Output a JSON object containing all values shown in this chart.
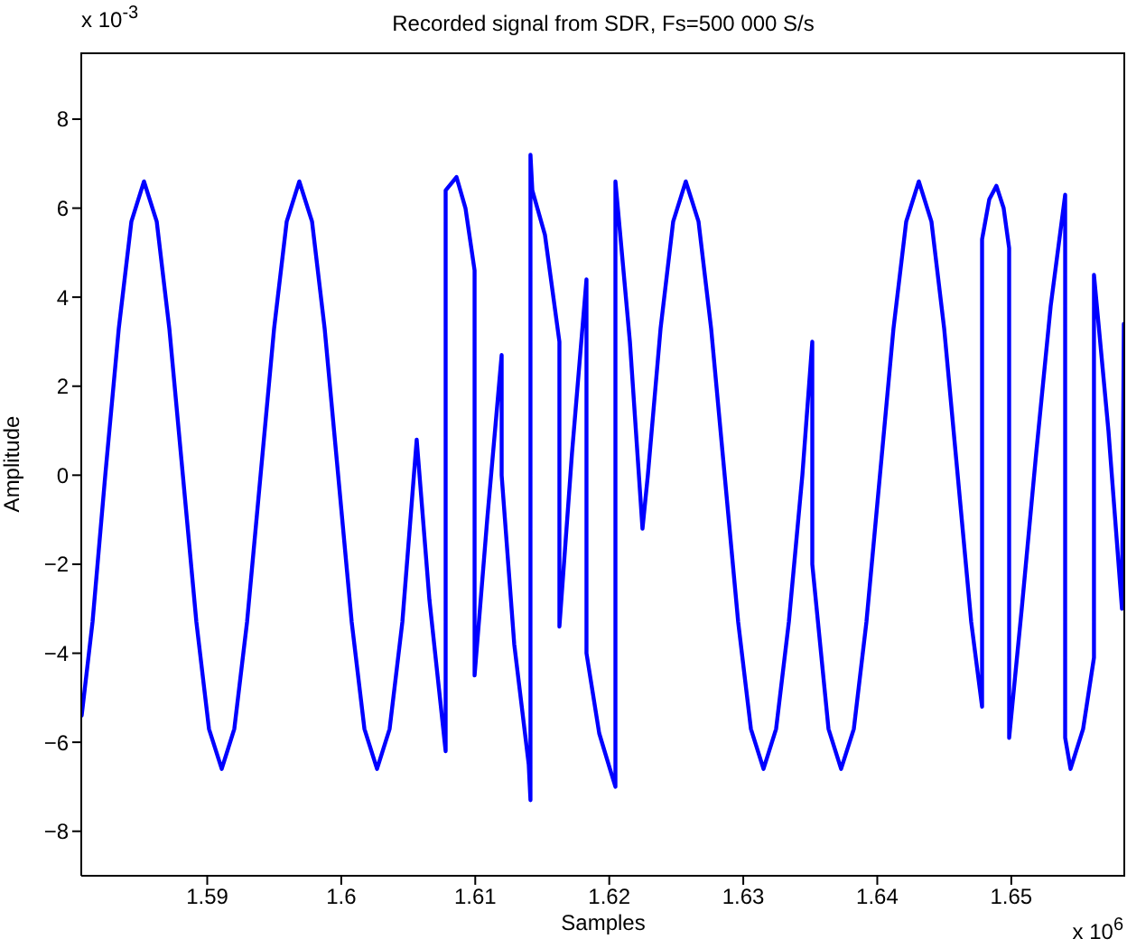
{
  "chart_data": {
    "type": "line",
    "title": "Recorded signal from SDR, Fs=500 000 S/s",
    "xlabel": "Samples",
    "ylabel": "Amplitude",
    "annotations": [
      "x 10$^{-3}$",
      "x 10$^{6}$"
    ],
    "x": [
      1.58063,
      1.58144,
      1.58239,
      1.5834,
      1.58434,
      1.58528,
      1.58623,
      1.58717,
      1.58818,
      1.58919,
      1.59013,
      1.59108,
      1.59202,
      1.59297,
      1.59398,
      1.59499,
      1.59593,
      1.59687,
      1.59782,
      1.59876,
      1.59977,
      1.60078,
      1.60173,
      1.60267,
      1.60361,
      1.60456,
      1.60563,
      1.60658,
      1.60779,
      1.60779,
      1.6086,
      1.60927,
      1.60995,
      1.60995,
      1.61089,
      1.61197,
      1.61197,
      1.61291,
      1.61399,
      1.61412,
      1.61412,
      1.61426,
      1.6152,
      1.61628,
      1.61628,
      1.61722,
      1.6183,
      1.6183,
      1.61925,
      1.62005,
      1.62046,
      1.62046,
      1.62154,
      1.62248,
      1.62288,
      1.62383,
      1.62477,
      1.62571,
      1.62666,
      1.6276,
      1.62861,
      1.62962,
      1.63057,
      1.63151,
      1.63245,
      1.6334,
      1.63441,
      1.63515,
      1.63515,
      1.63636,
      1.6373,
      1.63825,
      1.63919,
      1.6402,
      1.64121,
      1.64216,
      1.6431,
      1.64404,
      1.64499,
      1.646,
      1.64701,
      1.64782,
      1.64782,
      1.64836,
      1.64889,
      1.64943,
      1.64984,
      1.64984,
      1.65078,
      1.65186,
      1.65294,
      1.65402,
      1.65402,
      1.65442,
      1.65536,
      1.65617,
      1.65617,
      1.65725,
      1.65826,
      1.6584
    ],
    "series": [
      {
        "color": "#0000ff",
        "line_style": "solid",
        "values": [
          -5.4,
          -3.3,
          0,
          3.3,
          5.7,
          6.6,
          5.7,
          3.3,
          0,
          -3.3,
          -5.7,
          -6.6,
          -5.7,
          -3.3,
          0,
          3.3,
          5.7,
          6.6,
          5.7,
          3.3,
          0,
          -3.3,
          -5.7,
          -6.6,
          -5.7,
          -3.3,
          0.8,
          -2.8,
          -6.2,
          6.4,
          6.7,
          6.0,
          4.6,
          -4.5,
          -1.0,
          2.7,
          0,
          -3.8,
          -6.5,
          -7.3,
          7.2,
          6.4,
          5.4,
          3.0,
          -3.4,
          0.5,
          4.4,
          -4.0,
          -5.8,
          -6.6,
          -7.0,
          6.6,
          3.0,
          -1.2,
          0,
          3.3,
          5.7,
          6.6,
          5.7,
          3.3,
          0,
          -3.3,
          -5.7,
          -6.6,
          -5.7,
          -3.3,
          0,
          3.0,
          -2.0,
          -5.7,
          -6.6,
          -5.7,
          -3.3,
          0,
          3.3,
          5.7,
          6.6,
          5.7,
          3.3,
          0,
          -3.3,
          -5.2,
          5.3,
          6.2,
          6.5,
          6.0,
          5.1,
          -5.9,
          -3.0,
          0.5,
          3.8,
          6.3,
          -5.9,
          -6.6,
          -5.7,
          -4.1,
          4.5,
          1.0,
          -3.0,
          3.4
        ]
      }
    ],
    "xlim": [
      1.5806,
      1.6585
    ],
    "ylim": [
      -9,
      9.5
    ],
    "xticks": [
      1.59,
      1.6,
      1.61,
      1.62,
      1.63,
      1.64,
      1.65
    ],
    "yticks": [
      -8,
      -6,
      -4,
      -2,
      0,
      2,
      4,
      6,
      8
    ],
    "grid": false,
    "legend": false
  }
}
